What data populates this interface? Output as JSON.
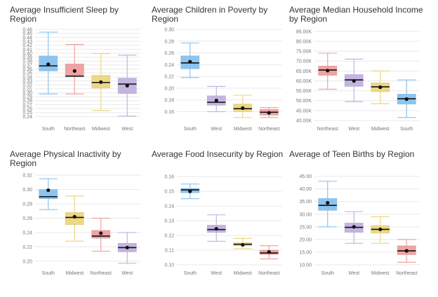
{
  "chart_data": [
    {
      "type": "box",
      "title": "Average Insufficient Sleep by Region",
      "yticks": [
        "0.24",
        "0.25",
        "0.26",
        "0.27",
        "0.28",
        "0.29",
        "0.30",
        "0.31",
        "0.32",
        "0.33",
        "0.34",
        "0.35",
        "0.36",
        "0.37",
        "0.38",
        "0.39",
        "0.40",
        "0.41",
        "0.42",
        "0.43",
        "0.44",
        "0.45",
        "0.46"
      ],
      "ylim": [
        0.23,
        0.46
      ],
      "grid": true,
      "categories": [
        "South",
        "Northeast",
        "Midwest",
        "West"
      ],
      "boxes": [
        {
          "category": "South",
          "min": 0.297,
          "q1": 0.355,
          "median": 0.368,
          "q3": 0.393,
          "max": 0.453,
          "mean": 0.372,
          "color": "#8cc4ef"
        },
        {
          "category": "Northeast",
          "min": 0.297,
          "q1": 0.342,
          "median": 0.342,
          "q3": 0.373,
          "max": 0.422,
          "mean": 0.355,
          "color": "#efa3a3"
        },
        {
          "category": "Midwest",
          "min": 0.255,
          "q1": 0.312,
          "median": 0.326,
          "q3": 0.344,
          "max": 0.399,
          "mean": 0.327,
          "color": "#ecd883"
        },
        {
          "category": "West",
          "min": 0.241,
          "q1": 0.298,
          "median": 0.322,
          "q3": 0.337,
          "max": 0.395,
          "mean": 0.318,
          "color": "#c3b4e1"
        }
      ]
    },
    {
      "type": "box",
      "title": "Average Children in Poverty by Region",
      "yticks": [
        "0.16",
        "0.18",
        "0.20",
        "0.22",
        "0.24",
        "0.26",
        "0.28",
        "0.30"
      ],
      "ylim": [
        0.145,
        0.3
      ],
      "grid": true,
      "categories": [
        "South",
        "West",
        "Midwest",
        "Northeast"
      ],
      "boxes": [
        {
          "category": "South",
          "min": 0.218,
          "q1": 0.233,
          "median": 0.243,
          "q3": 0.255,
          "max": 0.277,
          "mean": 0.245,
          "color": "#8cc4ef"
        },
        {
          "category": "West",
          "min": 0.16,
          "q1": 0.171,
          "median": 0.176,
          "q3": 0.187,
          "max": 0.203,
          "mean": 0.179,
          "color": "#c3b4e1"
        },
        {
          "category": "Midwest",
          "min": 0.15,
          "q1": 0.16,
          "median": 0.165,
          "q3": 0.173,
          "max": 0.188,
          "mean": 0.166,
          "color": "#ecd883"
        },
        {
          "category": "Northeast",
          "min": 0.15,
          "q1": 0.154,
          "median": 0.159,
          "q3": 0.164,
          "max": 0.167,
          "mean": 0.158,
          "color": "#efa3a3"
        }
      ]
    },
    {
      "type": "box",
      "title": "Average Median Household Income by Region",
      "yticks": [
        "40.00K",
        "45.00K",
        "50.00K",
        "55.00K",
        "60.00K",
        "65.00K",
        "70.00K",
        "75.00K",
        "80.00K",
        "85.00K"
      ],
      "ylim": [
        40000,
        86000
      ],
      "grid": true,
      "categories": [
        "Northeast",
        "West",
        "Midwest",
        "South"
      ],
      "boxes": [
        {
          "category": "Northeast",
          "min": 55800,
          "q1": 62800,
          "median": 65500,
          "q3": 67500,
          "max": 74000,
          "mean": 65200,
          "color": "#efa3a3"
        },
        {
          "category": "West",
          "min": 49500,
          "q1": 57200,
          "median": 60500,
          "q3": 63200,
          "max": 71000,
          "mean": 60000,
          "color": "#c3b4e1"
        },
        {
          "category": "Midwest",
          "min": 48500,
          "q1": 54500,
          "median": 57000,
          "q3": 59000,
          "max": 65000,
          "mean": 56800,
          "color": "#ecd883"
        },
        {
          "category": "South",
          "min": 41500,
          "q1": 48300,
          "median": 51000,
          "q3": 53300,
          "max": 60500,
          "mean": 50800,
          "color": "#8cc4ef"
        }
      ]
    },
    {
      "type": "box",
      "title": "Average Physical Inactivity by Region",
      "yticks": [
        "0.20",
        "0.22",
        "0.24",
        "0.26",
        "0.28",
        "0.30",
        "0.32"
      ],
      "ylim": [
        0.195,
        0.322
      ],
      "grid": true,
      "categories": [
        "South",
        "Midwest",
        "Northeast",
        "West"
      ],
      "boxes": [
        {
          "category": "South",
          "min": 0.272,
          "q1": 0.287,
          "median": 0.29,
          "q3": 0.3,
          "max": 0.315,
          "mean": 0.299,
          "color": "#8cc4ef"
        },
        {
          "category": "Midwest",
          "min": 0.228,
          "q1": 0.251,
          "median": 0.261,
          "q3": 0.268,
          "max": 0.291,
          "mean": 0.262,
          "color": "#ecd883"
        },
        {
          "category": "Northeast",
          "min": 0.214,
          "q1": 0.232,
          "median": 0.235,
          "q3": 0.243,
          "max": 0.26,
          "mean": 0.239,
          "color": "#efa3a3"
        },
        {
          "category": "West",
          "min": 0.197,
          "q1": 0.213,
          "median": 0.219,
          "q3": 0.225,
          "max": 0.24,
          "mean": 0.219,
          "color": "#c3b4e1"
        }
      ]
    },
    {
      "type": "box",
      "title": "Average Food Insecurity by Region",
      "yticks": [
        "0.10",
        "0.11",
        "0.12",
        "0.13",
        "0.14",
        "0.15",
        "0.16"
      ],
      "ylim": [
        0.1,
        0.162
      ],
      "grid": true,
      "categories": [
        "South",
        "West",
        "Midwest",
        "Northeast"
      ],
      "boxes": [
        {
          "category": "South",
          "min": 0.145,
          "q1": 0.149,
          "median": 0.151,
          "q3": 0.152,
          "max": 0.155,
          "mean": 0.15,
          "color": "#8cc4ef"
        },
        {
          "category": "West",
          "min": 0.116,
          "q1": 0.122,
          "median": 0.124,
          "q3": 0.127,
          "max": 0.134,
          "mean": 0.1245,
          "color": "#c3b4e1"
        },
        {
          "category": "Midwest",
          "min": 0.111,
          "q1": 0.113,
          "median": 0.114,
          "q3": 0.115,
          "max": 0.118,
          "mean": 0.1136,
          "color": "#ecd883"
        },
        {
          "category": "Northeast",
          "min": 0.104,
          "q1": 0.107,
          "median": 0.108,
          "q3": 0.11,
          "max": 0.113,
          "mean": 0.1087,
          "color": "#efa3a3"
        }
      ]
    },
    {
      "type": "box",
      "title": "Average of Teen Births by Region",
      "yticks": [
        "10.00",
        "15.00",
        "20.00",
        "25.00",
        "30.00",
        "35.00",
        "40.00",
        "45.00"
      ],
      "ylim": [
        10,
        46
      ],
      "grid": true,
      "categories": [
        "South",
        "West",
        "Midwest",
        "Northeast"
      ],
      "boxes": [
        {
          "category": "South",
          "min": 25.0,
          "q1": 31.5,
          "median": 33.5,
          "q3": 36.2,
          "max": 43.0,
          "mean": 34.5,
          "color": "#8cc4ef"
        },
        {
          "category": "West",
          "min": 18.5,
          "q1": 22.8,
          "median": 24.8,
          "q3": 26.5,
          "max": 31.0,
          "mean": 25.0,
          "color": "#c3b4e1"
        },
        {
          "category": "Midwest",
          "min": 18.5,
          "q1": 22.5,
          "median": 24.0,
          "q3": 25.5,
          "max": 29.0,
          "mean": 24.0,
          "color": "#ecd883"
        },
        {
          "category": "Northeast",
          "min": 11.0,
          "q1": 14.0,
          "median": 15.5,
          "q3": 17.5,
          "max": 20.0,
          "mean": 15.5,
          "color": "#efa3a3"
        }
      ]
    }
  ]
}
